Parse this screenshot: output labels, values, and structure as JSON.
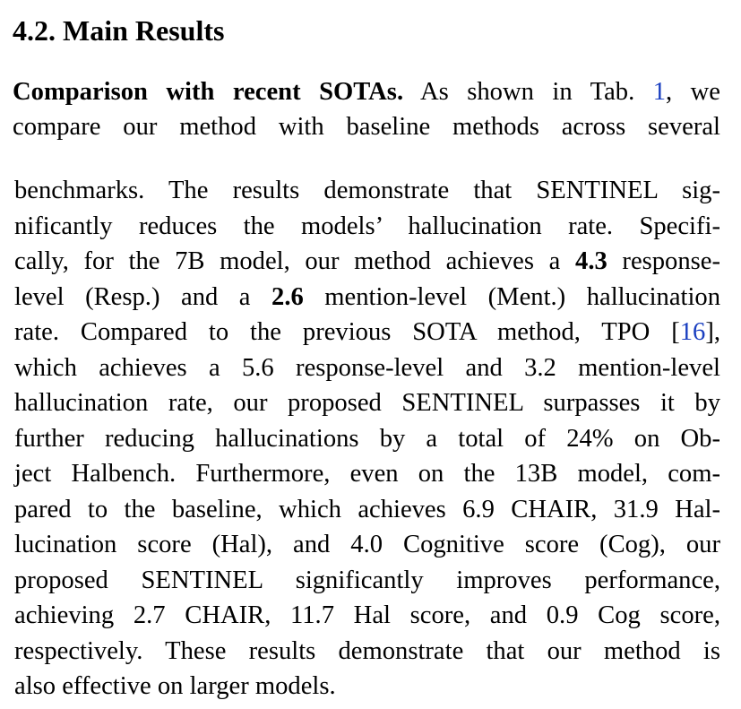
{
  "section": {
    "heading": "4.2. Main Results"
  },
  "paragraph": {
    "run_in_title": "Comparison with recent SOTAs.",
    "lines_col1": [
      {
        "pre": "As shown in Tab. ",
        "ref": "1",
        "post": ", we"
      },
      {
        "text": "compare our method with baseline methods across several"
      }
    ],
    "lines_col2": [
      "benchmarks. The results demonstrate that SENTINEL sig-",
      "nificantly reduces the models’ hallucination rate. Specifi-",
      {
        "pre": "cally, for the 7B model, our method achieves a ",
        "bold": "4.3",
        "post": " response-"
      },
      {
        "pre": "level (Resp.) and a ",
        "bold": "2.6",
        "post": " mention-level (Ment.) hallucination"
      },
      {
        "pre": "rate. Compared to the previous SOTA method, TPO [",
        "ref": "16",
        "post": "],"
      },
      "which achieves a 5.6 response-level and 3.2 mention-level",
      "hallucination rate, our proposed SENTINEL surpasses it by",
      "further reducing hallucinations by a total of 24% on Ob-",
      "ject Halbench. Furthermore, even on the 13B model, com-",
      "pared to the baseline, which achieves 6.9 CHAIR, 31.9 Hal-",
      "lucination score (Hal), and 4.0 Cognitive score (Cog), our",
      "proposed SENTINEL significantly improves performance,",
      "achieving 2.7 CHAIR, 11.7 Hal score, and 0.9 Cog score,",
      "respectively. These results demonstrate that our method is",
      "also effective on larger models."
    ]
  },
  "colors": {
    "text": "#000000",
    "link": "#1a3fc0",
    "background": "#ffffff"
  }
}
